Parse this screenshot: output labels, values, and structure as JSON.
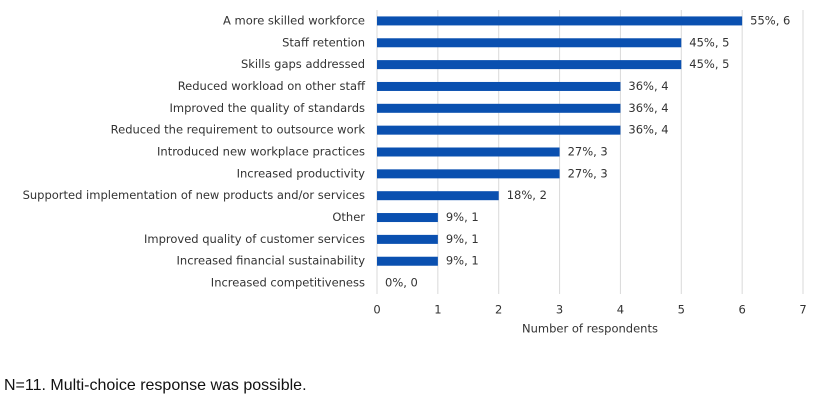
{
  "chart_data": {
    "type": "bar",
    "orientation": "horizontal",
    "categories": [
      "A more skilled workforce",
      "Staff retention",
      "Skills gaps addressed",
      "Reduced workload on other staff",
      "Improved the quality of standards",
      "Reduced the requirement to outsource work",
      "Introduced new workplace practices",
      "Increased productivity",
      "Supported implementation of new products and/or services",
      "Other",
      "Improved quality of customer services",
      "Increased financial sustainability",
      "Increased competitiveness"
    ],
    "values": [
      6,
      5,
      5,
      4,
      4,
      4,
      3,
      3,
      2,
      1,
      1,
      1,
      0
    ],
    "value_labels": [
      "55%, 6",
      "45%, 5",
      "45%, 5",
      "36%, 4",
      "36%, 4",
      "36%, 4",
      "27%, 3",
      "27%, 3",
      "18%, 2",
      "9%, 1",
      "9%, 1",
      "9%, 1",
      "0%, 0"
    ],
    "color": "#0a50b0",
    "xlabel": "Number of respondents",
    "xlim": [
      0,
      7
    ],
    "xticks": [
      0,
      1,
      2,
      3,
      4,
      5,
      6,
      7
    ],
    "grid": true,
    "note": "N=11. Multi-choice response was possible."
  }
}
